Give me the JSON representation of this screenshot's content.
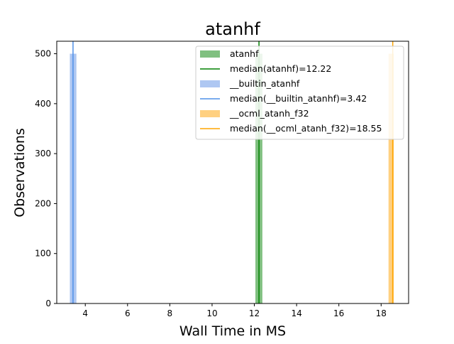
{
  "chart_data": {
    "type": "bar",
    "title": "atanhf",
    "xlabel": "Wall Time in MS",
    "ylabel": "Observations",
    "xlim": [
      2.65,
      19.3
    ],
    "ylim": [
      0,
      525
    ],
    "xticks": [
      4,
      6,
      8,
      10,
      12,
      14,
      16,
      18
    ],
    "yticks": [
      0,
      100,
      200,
      300,
      400,
      500
    ],
    "grid": false,
    "legend_position": "top-right",
    "series": [
      {
        "name": "atanhf",
        "kind": "histogram",
        "color": "#80c080",
        "bins": [
          {
            "x0": 12.05,
            "x1": 12.38,
            "count": 500
          }
        ],
        "median": 12.22,
        "median_label": "median(atanhf)=12.22",
        "median_color": "#008000"
      },
      {
        "name": "__builtin_atanhf",
        "kind": "histogram",
        "color": "#aec7f2",
        "bins": [
          {
            "x0": 3.27,
            "x1": 3.58,
            "count": 500
          }
        ],
        "median": 3.42,
        "median_label": "median(__builtin_atanhf)=3.42",
        "median_color": "#4f90e8"
      },
      {
        "name": "__ocml_atanh_f32",
        "kind": "histogram",
        "color": "#ffd080",
        "bins": [
          {
            "x0": 18.35,
            "x1": 18.6,
            "count": 500
          }
        ],
        "median": 18.55,
        "median_label": "median(__ocml_atanh_f32)=18.55",
        "median_color": "#ffa500"
      }
    ],
    "legend": [
      {
        "label": "atanhf",
        "marker": "patch",
        "color": "#80c080"
      },
      {
        "label": "median(atanhf)=12.22",
        "marker": "line",
        "color": "#008000"
      },
      {
        "label": "__builtin_atanhf",
        "marker": "patch",
        "color": "#aec7f2"
      },
      {
        "label": "median(__builtin_atanhf)=3.42",
        "marker": "line",
        "color": "#4f90e8"
      },
      {
        "label": "__ocml_atanh_f32",
        "marker": "patch",
        "color": "#ffd080"
      },
      {
        "label": "median(__ocml_atanh_f32)=18.55",
        "marker": "line",
        "color": "#ffa500"
      }
    ]
  }
}
